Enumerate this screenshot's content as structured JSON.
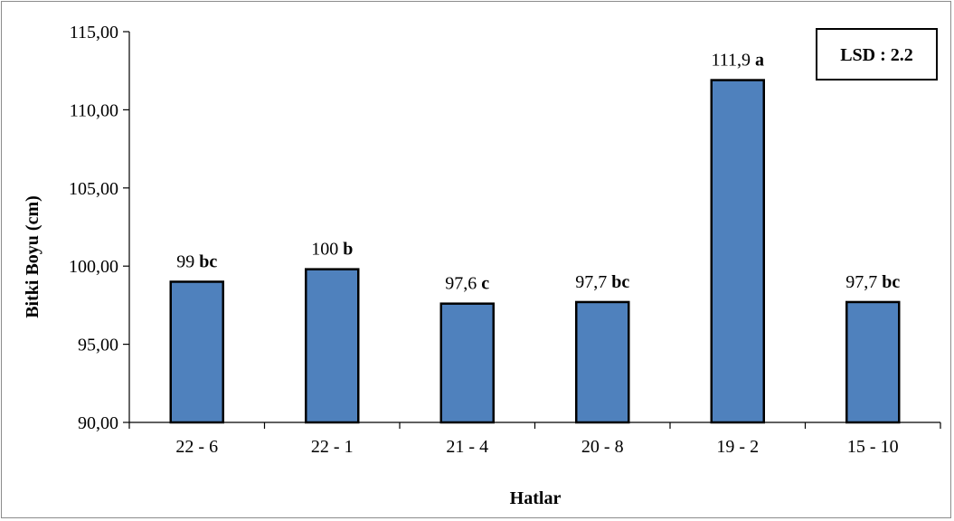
{
  "chart_data": {
    "type": "bar",
    "categories": [
      "22 - 6",
      "22 - 1",
      "21 - 4",
      "20 - 8",
      "19 - 2",
      "15 - 10"
    ],
    "values": [
      99.0,
      99.8,
      97.6,
      97.7,
      111.9,
      97.7
    ],
    "value_labels": [
      "99",
      "100",
      "97,6",
      "97,7",
      "111,9",
      "97,7"
    ],
    "letters": [
      "bc",
      "b",
      "c",
      "bc",
      "a",
      "bc"
    ],
    "xlabel": "Hatlar",
    "ylabel": "Bitki Boyu (cm)",
    "ylim": [
      90,
      115
    ],
    "yticks": [
      90,
      95,
      100,
      105,
      110,
      115
    ],
    "ytick_labels": [
      "90,00",
      "95,00",
      "100,00",
      "105,00",
      "110,00",
      "115,00"
    ],
    "annotation": "LSD : 2.2",
    "bar_color": "#4f81bd",
    "bar_edge_color": "#000000",
    "grid": false
  }
}
